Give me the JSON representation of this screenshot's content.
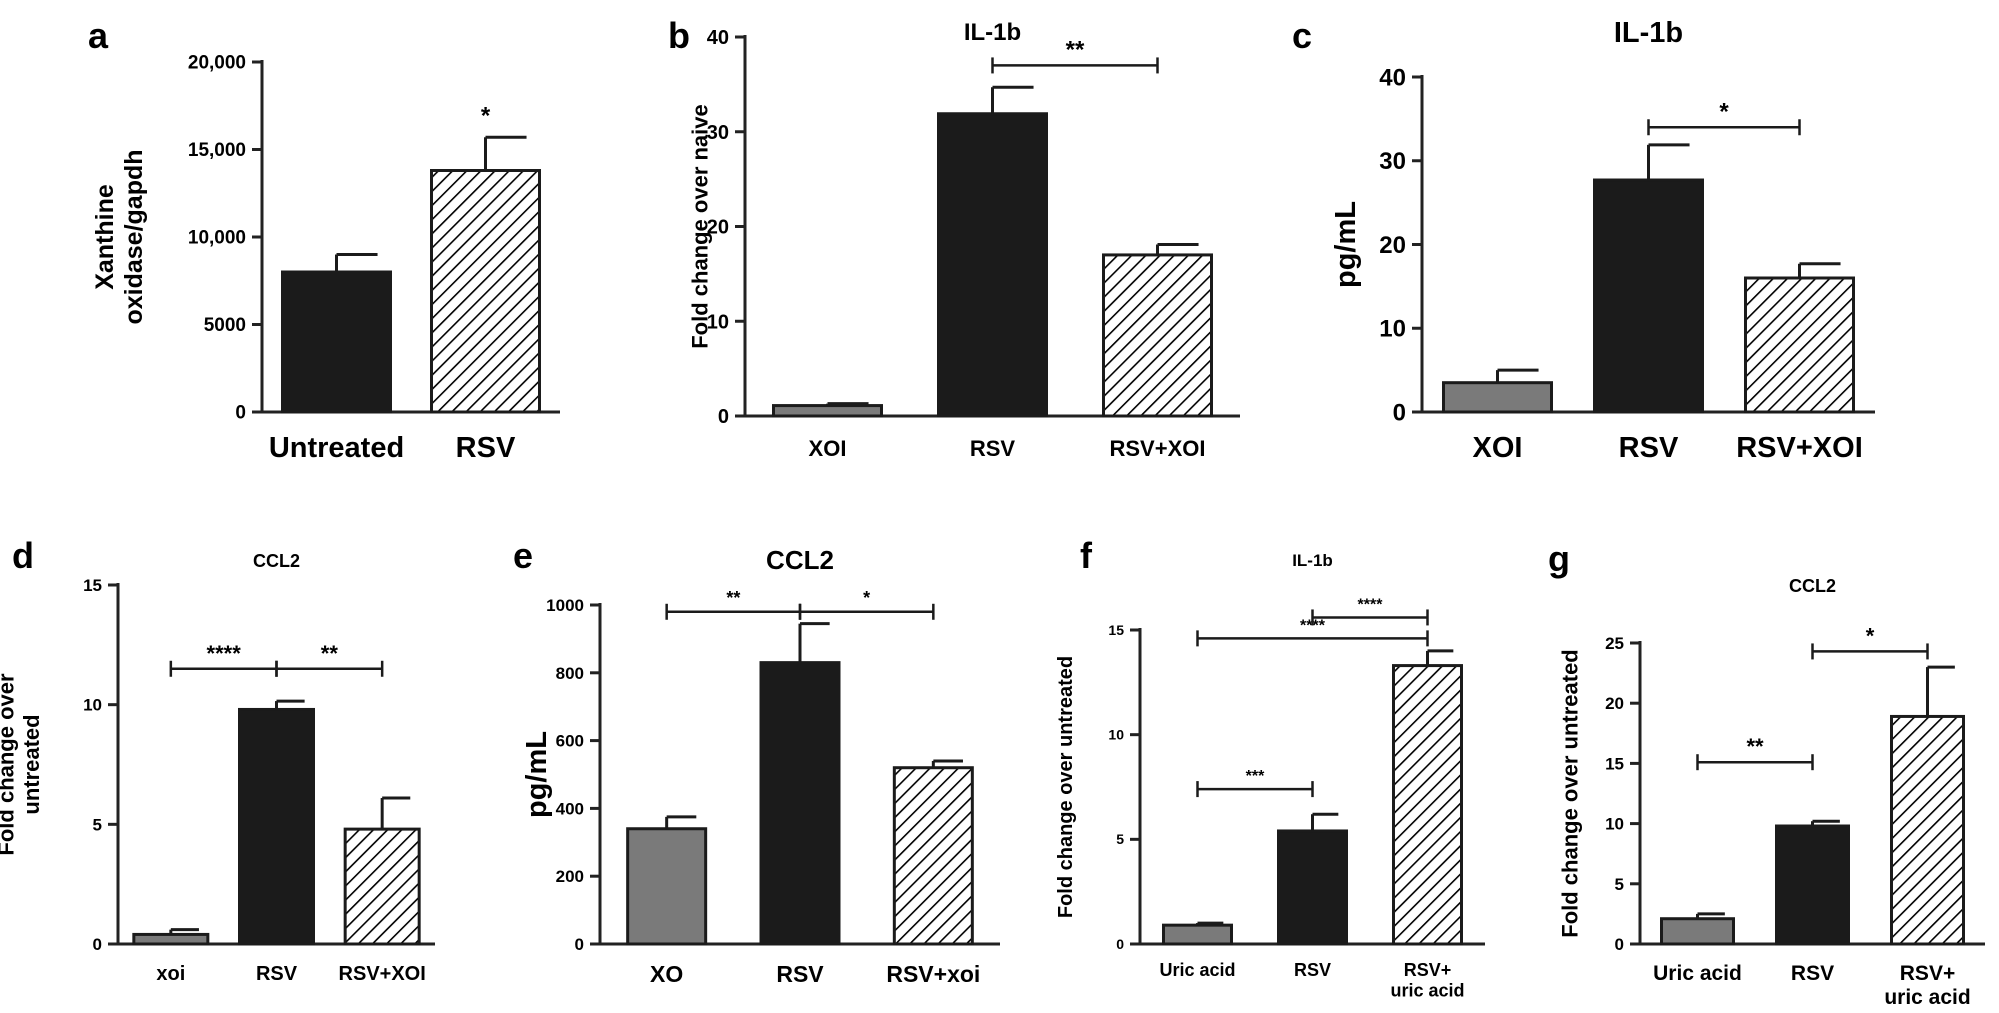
{
  "chart_data": [
    {
      "id": "a",
      "type": "bar",
      "panel_label": "a",
      "title": "",
      "ylabel": "Xanthine\noxidase/gapdh",
      "categories": [
        "Untreated",
        "RSV"
      ],
      "values": [
        8000,
        13800
      ],
      "errors": [
        1000,
        1900
      ],
      "fills": [
        "solid-black",
        "hatch-white"
      ],
      "ylim": [
        0,
        20000
      ],
      "yticks": [
        0,
        5000,
        10000,
        15000,
        20000
      ],
      "ytick_labels": [
        "0",
        "5000",
        "10,000",
        "15,000",
        "20,000"
      ],
      "annotations": [
        {
          "bar": 1,
          "text": "*"
        }
      ],
      "brackets": []
    },
    {
      "id": "b",
      "type": "bar",
      "panel_label": "b",
      "title": "IL-1b",
      "ylabel": "Fold change over naive",
      "categories": [
        "XOI",
        "RSV",
        "RSV+XOI"
      ],
      "values": [
        1.1,
        31.9,
        17.0
      ],
      "errors": [
        0.2,
        2.8,
        1.1
      ],
      "fills": [
        "solid-gray",
        "solid-black",
        "hatch-white"
      ],
      "ylim": [
        0,
        40
      ],
      "yticks": [
        0,
        10,
        20,
        30,
        40
      ],
      "ytick_labels": [
        "0",
        "10",
        "20",
        "30",
        "40"
      ],
      "annotations": [],
      "brackets": [
        {
          "from": 1,
          "to": 2,
          "y": 37,
          "text": "**"
        }
      ]
    },
    {
      "id": "c",
      "type": "bar",
      "panel_label": "c",
      "title": "IL-1b",
      "ylabel": "pg/mL",
      "categories": [
        "XOI",
        "RSV",
        "RSV+XOI"
      ],
      "values": [
        3.5,
        27.7,
        16.0
      ],
      "errors": [
        1.5,
        4.2,
        1.7
      ],
      "fills": [
        "solid-gray",
        "solid-black",
        "hatch-white"
      ],
      "ylim": [
        0,
        40
      ],
      "yticks": [
        0,
        10,
        20,
        30,
        40
      ],
      "ytick_labels": [
        "0",
        "10",
        "20",
        "30",
        "40"
      ],
      "annotations": [],
      "brackets": [
        {
          "from": 1,
          "to": 2,
          "y": 34,
          "text": "*"
        }
      ]
    },
    {
      "id": "d",
      "type": "bar",
      "panel_label": "d",
      "title": "CCL2",
      "ylabel": "Fold change over\nuntreated",
      "categories": [
        "xoi",
        "RSV",
        "RSV+XOI"
      ],
      "values": [
        0.4,
        9.8,
        4.8
      ],
      "errors": [
        0.2,
        0.35,
        1.3
      ],
      "fills": [
        "solid-gray",
        "solid-black",
        "hatch-white"
      ],
      "ylim": [
        0,
        15
      ],
      "yticks": [
        0,
        5,
        10,
        15
      ],
      "ytick_labels": [
        "0",
        "5",
        "10",
        "15"
      ],
      "annotations": [],
      "brackets": [
        {
          "from": 0,
          "to": 1,
          "y": 11.5,
          "text": "****"
        },
        {
          "from": 1,
          "to": 2,
          "y": 11.5,
          "text": "**"
        }
      ]
    },
    {
      "id": "e",
      "type": "bar",
      "panel_label": "e",
      "title": "CCL2",
      "ylabel": "pg/mL",
      "categories": [
        "XO",
        "RSV",
        "RSV+xoi"
      ],
      "values": [
        340,
        830,
        520
      ],
      "errors": [
        35,
        115,
        20
      ],
      "fills": [
        "solid-gray",
        "solid-black",
        "hatch-white"
      ],
      "ylim": [
        0,
        1000
      ],
      "yticks": [
        0,
        200,
        400,
        600,
        800,
        1000
      ],
      "ytick_labels": [
        "0",
        "200",
        "400",
        "600",
        "800",
        "1000"
      ],
      "annotations": [],
      "brackets": [
        {
          "from": 0,
          "to": 1,
          "y": 980,
          "text": "**"
        },
        {
          "from": 1,
          "to": 2,
          "y": 980,
          "text": "*"
        }
      ]
    },
    {
      "id": "f",
      "type": "bar",
      "panel_label": "f",
      "title": "IL-1b",
      "ylabel": "Fold change over untreated",
      "categories": [
        "Uric acid",
        "RSV",
        "RSV+\nuric acid"
      ],
      "values": [
        0.9,
        5.4,
        13.3
      ],
      "errors": [
        0.1,
        0.8,
        0.7
      ],
      "fills": [
        "solid-gray",
        "solid-black",
        "hatch-white"
      ],
      "ylim": [
        0,
        15
      ],
      "yticks": [
        0,
        5,
        10,
        15
      ],
      "ytick_labels": [
        "0",
        "5",
        "10",
        "15"
      ],
      "annotations": [],
      "brackets": [
        {
          "from": 0,
          "to": 1,
          "y": 7.4,
          "text": "***"
        },
        {
          "from": 0,
          "to": 2,
          "y": 14.6,
          "text": "****"
        },
        {
          "from": 1,
          "to": 2,
          "y": 15.6,
          "text": "****"
        }
      ]
    },
    {
      "id": "g",
      "type": "bar",
      "panel_label": "g",
      "title": "CCL2",
      "ylabel": "Fold change over untreated",
      "categories": [
        "Uric acid",
        "RSV",
        "RSV+\nuric acid"
      ],
      "values": [
        2.1,
        9.8,
        18.9
      ],
      "errors": [
        0.4,
        0.4,
        4.1
      ],
      "fills": [
        "solid-gray",
        "solid-black",
        "hatch-white"
      ],
      "ylim": [
        0,
        25
      ],
      "yticks": [
        0,
        5,
        10,
        15,
        20,
        25
      ],
      "ytick_labels": [
        "0",
        "5",
        "10",
        "15",
        "20",
        "25"
      ],
      "annotations": [],
      "brackets": [
        {
          "from": 0,
          "to": 1,
          "y": 15.1,
          "text": "**"
        },
        {
          "from": 1,
          "to": 2,
          "y": 24.3,
          "text": "*"
        }
      ]
    }
  ]
}
